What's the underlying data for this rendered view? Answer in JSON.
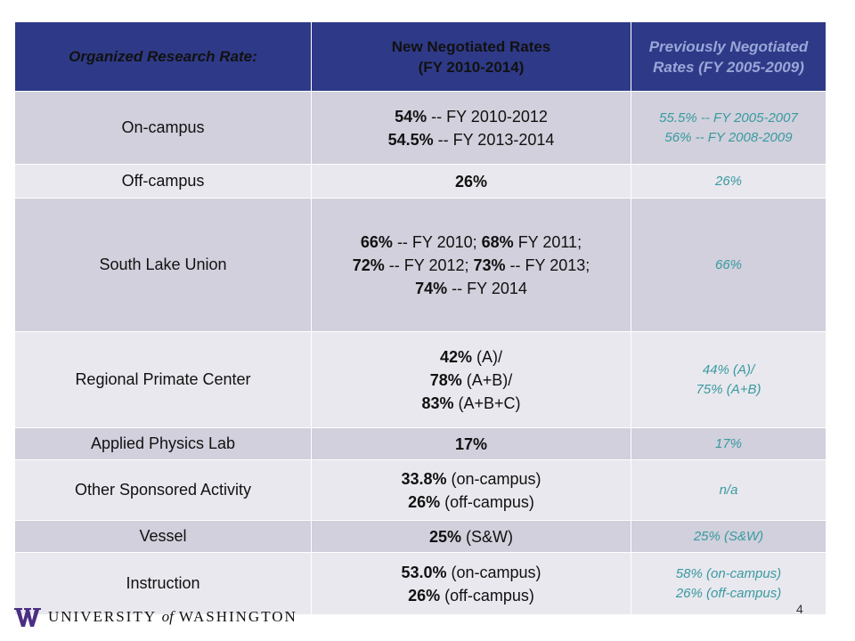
{
  "header": {
    "col1": "Organized Research Rate:",
    "col2_line1": "New Negotiated Rates",
    "col2_line2": "(FY 2010-2014)",
    "col3_line1": "Previously Negotiated",
    "col3_line2": "Rates (FY 2005-2009)"
  },
  "rows": [
    {
      "label": "On-campus",
      "new": [
        [
          "54%",
          " -- FY 2010-2012"
        ],
        [
          "54.5%",
          " -- FY 2013-2014"
        ]
      ],
      "prev": [
        "55.5% -- FY 2005-2007",
        "56% -- FY 2008-2009"
      ]
    },
    {
      "label": "Off-campus",
      "new": [
        [
          "26%",
          ""
        ]
      ],
      "prev": [
        "26%"
      ]
    },
    {
      "label": "South Lake Union",
      "new": [
        [
          "66%",
          " -- FY 2010; ",
          "68%",
          " FY 2011;"
        ],
        [
          "72%",
          " -- FY 2012; ",
          "73%",
          " -- FY 2013;"
        ],
        [
          "74%",
          " -- FY 2014"
        ]
      ],
      "prev": [
        "66%"
      ]
    },
    {
      "label": "Regional Primate Center",
      "new": [
        [
          "42%",
          " (A)/"
        ],
        [
          "78%",
          " (A+B)/"
        ],
        [
          "83%",
          " (A+B+C)"
        ]
      ],
      "prev": [
        "44% (A)/",
        "75% (A+B)"
      ]
    },
    {
      "label": "Applied Physics Lab",
      "new": [
        [
          "17%",
          ""
        ]
      ],
      "prev": [
        "17%"
      ]
    },
    {
      "label": "Other Sponsored Activity",
      "new": [
        [
          "33.8%",
          " (on-campus)"
        ],
        [
          "26%",
          " (off-campus)"
        ]
      ],
      "prev": [
        "n/a"
      ]
    },
    {
      "label": "Vessel",
      "new": [
        [
          "25%",
          " (S&W)"
        ]
      ],
      "prev": [
        "25% (S&W)"
      ]
    },
    {
      "label": "Instruction",
      "new": [
        [
          "53.0%",
          " (on-campus)"
        ],
        [
          "26%",
          " (off-campus)"
        ]
      ],
      "prev": [
        "58% (on-campus)",
        "26% (off-campus)"
      ]
    }
  ],
  "footer": {
    "university_pre": "UNIVERSITY",
    "university_of": "of",
    "university_post": "WASHINGTON",
    "page_number": "4"
  },
  "colors": {
    "header_bg": "#2e3a87",
    "new_rates": "#f5d000",
    "prev_rates": "#3a9aa0",
    "row_dark": "#d1d0dc",
    "row_light": "#e8e8ee"
  }
}
